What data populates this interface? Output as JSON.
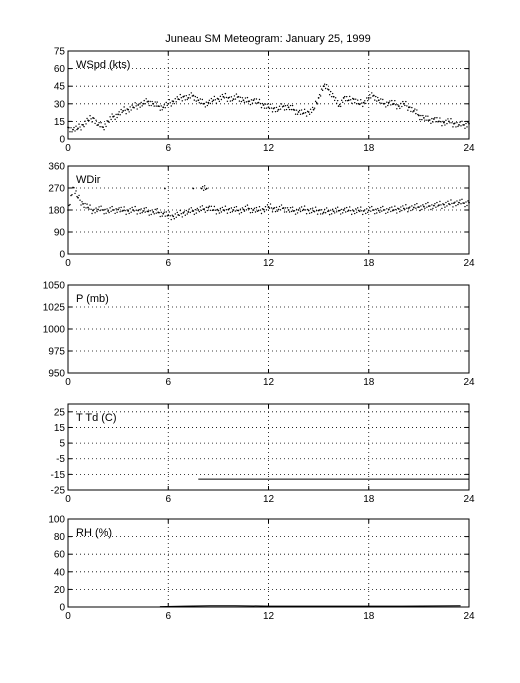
{
  "figure": {
    "title": "Juneau SM Meteogram:   January 25, 1999"
  },
  "chart_data": [
    {
      "type": "scatter",
      "label": "WSpd (kts)",
      "xlim": [
        0,
        24
      ],
      "ylim": [
        0,
        75
      ],
      "xticks": [
        0,
        6,
        12,
        18,
        24
      ],
      "yticks": [
        0,
        15,
        30,
        45,
        60,
        75
      ],
      "grid": true,
      "points": [
        [
          0.0,
          10
        ],
        [
          0.3,
          8
        ],
        [
          0.6,
          9
        ],
        [
          0.9,
          12
        ],
        [
          1.2,
          16
        ],
        [
          1.5,
          18
        ],
        [
          1.8,
          12
        ],
        [
          2.1,
          10
        ],
        [
          2.4,
          15
        ],
        [
          2.7,
          19
        ],
        [
          3.0,
          21
        ],
        [
          3.3,
          24
        ],
        [
          3.6,
          25
        ],
        [
          3.9,
          27
        ],
        [
          4.2,
          29
        ],
        [
          4.5,
          30
        ],
        [
          4.8,
          32
        ],
        [
          5.1,
          30
        ],
        [
          5.4,
          28
        ],
        [
          5.7,
          27
        ],
        [
          6.0,
          30
        ],
        [
          6.3,
          32
        ],
        [
          6.6,
          34
        ],
        [
          6.9,
          36
        ],
        [
          7.2,
          35
        ],
        [
          7.5,
          37
        ],
        [
          7.8,
          33
        ],
        [
          8.1,
          30
        ],
        [
          8.4,
          31
        ],
        [
          8.7,
          33
        ],
        [
          9.0,
          34
        ],
        [
          9.3,
          36
        ],
        [
          9.6,
          35
        ],
        [
          9.9,
          34
        ],
        [
          10.2,
          36
        ],
        [
          10.5,
          33
        ],
        [
          10.8,
          32
        ],
        [
          11.1,
          33
        ],
        [
          11.4,
          31
        ],
        [
          11.7,
          29
        ],
        [
          12.0,
          27
        ],
        [
          12.3,
          26
        ],
        [
          12.6,
          25
        ],
        [
          12.9,
          28
        ],
        [
          13.2,
          27
        ],
        [
          13.5,
          25
        ],
        [
          13.8,
          23
        ],
        [
          14.1,
          22
        ],
        [
          14.4,
          23
        ],
        [
          14.7,
          25
        ],
        [
          15.0,
          35
        ],
        [
          15.3,
          45
        ],
        [
          15.6,
          42
        ],
        [
          15.9,
          36
        ],
        [
          16.2,
          28
        ],
        [
          16.5,
          35
        ],
        [
          16.8,
          33
        ],
        [
          17.1,
          34
        ],
        [
          17.4,
          30
        ],
        [
          17.7,
          31
        ],
        [
          18.0,
          35
        ],
        [
          18.3,
          37
        ],
        [
          18.6,
          33
        ],
        [
          18.9,
          30
        ],
        [
          19.2,
          31
        ],
        [
          19.5,
          30
        ],
        [
          19.8,
          28
        ],
        [
          20.1,
          30
        ],
        [
          20.4,
          27
        ],
        [
          20.7,
          24
        ],
        [
          21.0,
          20
        ],
        [
          21.3,
          18
        ],
        [
          21.6,
          16
        ],
        [
          21.9,
          17
        ],
        [
          22.2,
          15
        ],
        [
          22.5,
          14
        ],
        [
          22.8,
          15
        ],
        [
          23.1,
          13
        ],
        [
          23.4,
          12
        ],
        [
          23.7,
          12
        ],
        [
          24.0,
          13
        ]
      ]
    },
    {
      "type": "scatter",
      "label": "WDir",
      "xlim": [
        0,
        24
      ],
      "ylim": [
        0,
        360
      ],
      "xticks": [
        0,
        6,
        12,
        18,
        24
      ],
      "yticks": [
        0,
        90,
        180,
        270,
        360
      ],
      "grid": true,
      "points": [
        [
          0.0,
          180
        ],
        [
          0.3,
          272
        ],
        [
          0.6,
          230
        ],
        [
          0.9,
          205
        ],
        [
          1.2,
          190
        ],
        [
          1.5,
          178
        ],
        [
          1.8,
          182
        ],
        [
          2.1,
          180
        ],
        [
          2.4,
          176
        ],
        [
          2.7,
          180
        ],
        [
          3.0,
          182
        ],
        [
          3.3,
          178
        ],
        [
          3.6,
          176
        ],
        [
          3.9,
          180
        ],
        [
          4.2,
          178
        ],
        [
          4.5,
          176
        ],
        [
          4.8,
          174
        ],
        [
          5.1,
          172
        ],
        [
          5.4,
          170
        ],
        [
          5.7,
          165
        ],
        [
          6.0,
          158
        ],
        [
          6.3,
          154
        ],
        [
          6.6,
          160
        ],
        [
          6.9,
          168
        ],
        [
          7.2,
          172
        ],
        [
          7.5,
          176
        ],
        [
          7.8,
          180
        ],
        [
          8.1,
          183
        ],
        [
          8.4,
          190
        ],
        [
          8.7,
          180
        ],
        [
          9.0,
          178
        ],
        [
          9.3,
          180
        ],
        [
          9.6,
          182
        ],
        [
          9.9,
          180
        ],
        [
          10.2,
          178
        ],
        [
          10.5,
          182
        ],
        [
          10.8,
          186
        ],
        [
          11.1,
          180
        ],
        [
          11.4,
          178
        ],
        [
          11.7,
          182
        ],
        [
          12.0,
          192
        ],
        [
          12.3,
          186
        ],
        [
          12.6,
          182
        ],
        [
          12.9,
          188
        ],
        [
          13.2,
          180
        ],
        [
          13.5,
          176
        ],
        [
          13.8,
          180
        ],
        [
          14.1,
          182
        ],
        [
          14.4,
          178
        ],
        [
          14.7,
          176
        ],
        [
          15.0,
          178
        ],
        [
          15.3,
          170
        ],
        [
          15.6,
          176
        ],
        [
          15.9,
          175
        ],
        [
          16.2,
          177
        ],
        [
          16.5,
          180
        ],
        [
          16.8,
          178
        ],
        [
          17.1,
          176
        ],
        [
          17.4,
          178
        ],
        [
          17.7,
          176
        ],
        [
          18.0,
          178
        ],
        [
          18.3,
          180
        ],
        [
          18.6,
          178
        ],
        [
          18.9,
          180
        ],
        [
          19.2,
          182
        ],
        [
          19.5,
          180
        ],
        [
          19.8,
          184
        ],
        [
          20.1,
          186
        ],
        [
          20.4,
          188
        ],
        [
          20.7,
          190
        ],
        [
          21.0,
          192
        ],
        [
          21.3,
          194
        ],
        [
          21.6,
          196
        ],
        [
          21.9,
          198
        ],
        [
          22.2,
          200
        ],
        [
          22.5,
          202
        ],
        [
          22.8,
          205
        ],
        [
          23.1,
          208
        ],
        [
          23.4,
          210
        ],
        [
          23.7,
          208
        ],
        [
          24.0,
          210
        ],
        [
          7.5,
          268
        ],
        [
          8.0,
          268
        ],
        [
          8.3,
          268
        ],
        [
          5.8,
          268
        ]
      ]
    },
    {
      "type": "line",
      "label": "P (mb)",
      "xlim": [
        0,
        24
      ],
      "ylim": [
        950,
        1050
      ],
      "xticks": [
        0,
        6,
        12,
        18,
        24
      ],
      "yticks": [
        950,
        975,
        1000,
        1025,
        1050
      ],
      "grid": true,
      "points": []
    },
    {
      "type": "line",
      "label": "T Td (C)",
      "xlim": [
        0,
        24
      ],
      "ylim": [
        -25,
        30
      ],
      "xticks": [
        0,
        6,
        12,
        18,
        24
      ],
      "yticks": [
        -25,
        -15,
        -5,
        5,
        15,
        25
      ],
      "grid": true,
      "points": [
        [
          7.8,
          -18
        ],
        [
          24.0,
          -18
        ]
      ]
    },
    {
      "type": "line",
      "label": "RH (%)",
      "xlim": [
        0,
        24
      ],
      "ylim": [
        0,
        100
      ],
      "xticks": [
        0,
        6,
        12,
        18,
        24
      ],
      "yticks": [
        0,
        20,
        40,
        60,
        80,
        100
      ],
      "grid": true,
      "points": [
        [
          5.5,
          0.5
        ],
        [
          7.0,
          1
        ],
        [
          8.5,
          1.5
        ],
        [
          10.0,
          1.5
        ],
        [
          12.0,
          1
        ],
        [
          16.0,
          1
        ],
        [
          20.0,
          1
        ],
        [
          23.5,
          1.5
        ]
      ]
    }
  ]
}
